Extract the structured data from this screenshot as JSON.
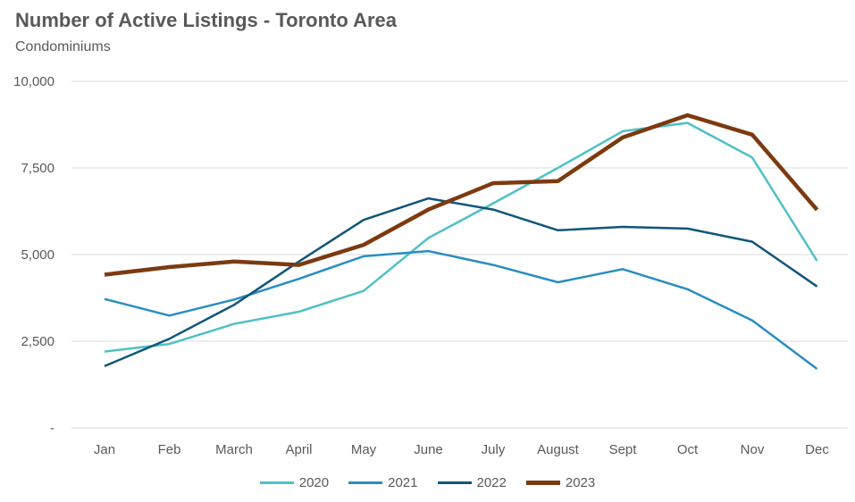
{
  "chart_data": {
    "type": "line",
    "title": "Number of Active Listings - Toronto Area",
    "subtitle": "Condominiums",
    "categories": [
      "Jan",
      "Feb",
      "March",
      "April",
      "May",
      "June",
      "July",
      "August",
      "Sept",
      "Oct",
      "Nov",
      "Dec"
    ],
    "yticks": [
      0,
      2500,
      5000,
      7500,
      10000
    ],
    "ytick_labels": [
      "-",
      "2,500",
      "5,000",
      "7,500",
      "10,000"
    ],
    "ylim": [
      0,
      10000
    ],
    "grid": true,
    "legend_position": "bottom",
    "series": [
      {
        "name": "2020",
        "color": "#4fc1c6",
        "values": [
          2200,
          2420,
          3000,
          3350,
          3950,
          5480,
          6480,
          7500,
          8560,
          8800,
          7800,
          4820
        ]
      },
      {
        "name": "2021",
        "color": "#2a8dc1",
        "values": [
          3720,
          3240,
          3700,
          4300,
          4950,
          5100,
          4700,
          4200,
          4580,
          4000,
          3100,
          1700
        ]
      },
      {
        "name": "2022",
        "color": "#10567a",
        "values": [
          1780,
          2570,
          3550,
          4800,
          6000,
          6620,
          6300,
          5700,
          5800,
          5750,
          5370,
          4080
        ]
      },
      {
        "name": "2023",
        "color": "#7c3a10",
        "values": [
          4420,
          4640,
          4800,
          4700,
          5280,
          6300,
          7060,
          7120,
          8380,
          9020,
          8460,
          6290
        ]
      }
    ]
  }
}
